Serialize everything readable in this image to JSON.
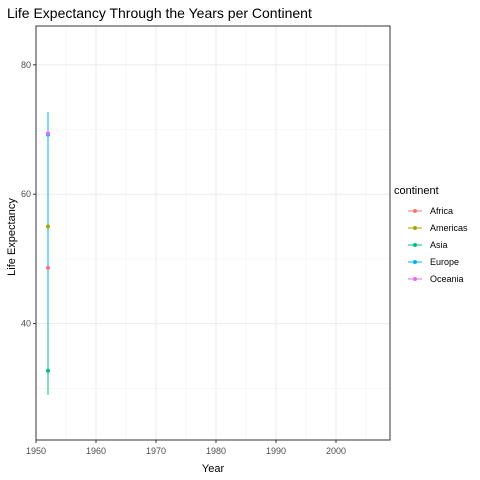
{
  "chart_data": {
    "type": "line",
    "title": "Life Expectancy Through the Years per Continent",
    "xlabel": "Year",
    "ylabel": "Life Expectancy",
    "xlim": [
      1950,
      2009
    ],
    "ylim": [
      22,
      86
    ],
    "x_ticks_major": [
      1950,
      1960,
      1970,
      1980,
      1990,
      2000
    ],
    "x_ticks_minor": [
      1955,
      1965,
      1975,
      1985,
      1995,
      2005
    ],
    "y_ticks_major": [
      40,
      60,
      80
    ],
    "y_ticks_minor": [
      30,
      50,
      70
    ],
    "grid": true,
    "legend": {
      "title": "continent",
      "position": "right"
    },
    "series": [
      {
        "name": "Africa",
        "color": "#F8766D",
        "x": 1952,
        "mean": 48.6,
        "min": 29.0,
        "max": 72.7
      },
      {
        "name": "Americas",
        "color": "#A3A500",
        "x": 1952,
        "mean": 55.0,
        "min": 29.0,
        "max": 72.7
      },
      {
        "name": "Asia",
        "color": "#00BF7D",
        "x": 1952,
        "mean": 32.7,
        "min": 29.0,
        "max": 40.0
      },
      {
        "name": "Europe",
        "color": "#00B0F6",
        "x": 1952,
        "mean": 69.2,
        "min": 40.0,
        "max": 72.7
      },
      {
        "name": "Oceania",
        "color": "#E76BF3",
        "x": 1952,
        "mean": 69.4,
        "min": 69.0,
        "max": 69.8
      }
    ]
  }
}
